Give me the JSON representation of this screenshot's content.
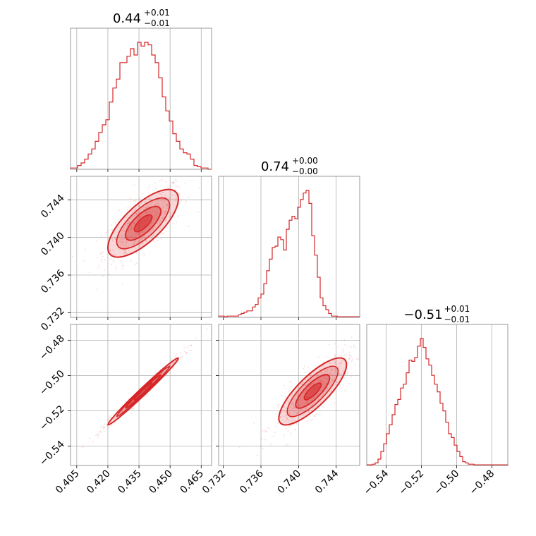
{
  "chart_data": {
    "type": "corner",
    "color": "#d62728",
    "grid": true,
    "panel_titles": [
      {
        "base": "0.44",
        "sup": "+0.01",
        "sub": "−0.01"
      },
      {
        "base": "0.74",
        "sup": "+0.00",
        "sub": "−0.00"
      },
      {
        "base": "−0.51",
        "sup": "+0.01",
        "sub": "−0.01"
      }
    ],
    "params": [
      {
        "range": [
          0.402,
          0.47
        ],
        "ticks": [
          0.405,
          0.42,
          0.435,
          0.45,
          0.465
        ],
        "tick_labels": [
          "0.405",
          "0.420",
          "0.435",
          "0.450",
          "0.465"
        ]
      },
      {
        "range": [
          0.7315,
          0.7465
        ],
        "ticks": [
          0.732,
          0.736,
          0.74,
          0.744
        ],
        "tick_labels": [
          "0.732",
          "0.736",
          "0.740",
          "0.744"
        ]
      },
      {
        "range": [
          -0.551,
          -0.471
        ],
        "ticks": [
          -0.54,
          -0.52,
          -0.5,
          -0.48
        ],
        "tick_labels": [
          "−0.54",
          "−0.52",
          "−0.50",
          "−0.48"
        ]
      }
    ],
    "histograms": [
      {
        "param": 0,
        "bin_start": 0.402,
        "bin_width": 0.0017,
        "counts": [
          0.1,
          0.1,
          0.3,
          0.5,
          0.8,
          1.2,
          1.6,
          2.2,
          2.9,
          3.5,
          3.9,
          5.3,
          6.4,
          7.1,
          8.4,
          8.4,
          8.9,
          9.5,
          9.0,
          10.0,
          9.7,
          10.0,
          9.8,
          9.0,
          8.4,
          7.2,
          5.7,
          4.6,
          3.8,
          2.8,
          2.2,
          1.6,
          1.3,
          1.2,
          0.8,
          0.3,
          0.2,
          0.1,
          0.1,
          0.0
        ]
      },
      {
        "param": 1,
        "bin_start": 0.7315,
        "bin_width": 0.0003,
        "counts": [
          0.1,
          0.1,
          0.05,
          0.1,
          0.1,
          0.1,
          0.1,
          0.2,
          0.3,
          0.4,
          0.5,
          0.5,
          0.8,
          1.0,
          1.5,
          1.8,
          2.6,
          3.6,
          4.5,
          5.4,
          5.5,
          6.2,
          6.0,
          5.2,
          6.8,
          7.5,
          7.8,
          7.6,
          8.5,
          9.1,
          9.6,
          9.8,
          8.8,
          6.3,
          4.8,
          3.1,
          1.5,
          0.9,
          0.6,
          0.3,
          0.1,
          0.1,
          0.05,
          0.05,
          0.05,
          0.05,
          0.05,
          0.05,
          0.05,
          0.05
        ]
      },
      {
        "param": 2,
        "bin_start": -0.551,
        "bin_width": 0.0016,
        "counts": [
          0.05,
          0.05,
          0.1,
          0.2,
          0.5,
          1.1,
          1.7,
          2.5,
          3.2,
          4.0,
          4.8,
          5.2,
          6.1,
          6.4,
          7.3,
          8.3,
          8.2,
          8.5,
          9.4,
          10.0,
          9.3,
          8.4,
          7.9,
          7.1,
          6.4,
          5.8,
          4.9,
          4.3,
          3.4,
          2.5,
          2.2,
          1.6,
          1.1,
          0.7,
          0.3,
          0.2,
          0.1,
          0.1,
          0.05,
          0.05,
          0.05,
          0.05,
          0.05,
          0.05,
          0.05,
          0.05,
          0.05,
          0.05,
          0.05,
          0.05
        ]
      }
    ],
    "joint": [
      {
        "x_param": 0,
        "y_param": 1,
        "mean": [
          0.437,
          0.7415
        ],
        "std": [
          0.0085,
          0.0018
        ],
        "corr": 0.72
      },
      {
        "x_param": 0,
        "y_param": 2,
        "mean": [
          0.437,
          -0.509
        ],
        "std": [
          0.0085,
          0.0095
        ],
        "corr": 0.99
      },
      {
        "x_param": 1,
        "y_param": 2,
        "mean": [
          0.7415,
          -0.509
        ],
        "std": [
          0.0018,
          0.0095
        ],
        "corr": 0.8
      }
    ]
  }
}
